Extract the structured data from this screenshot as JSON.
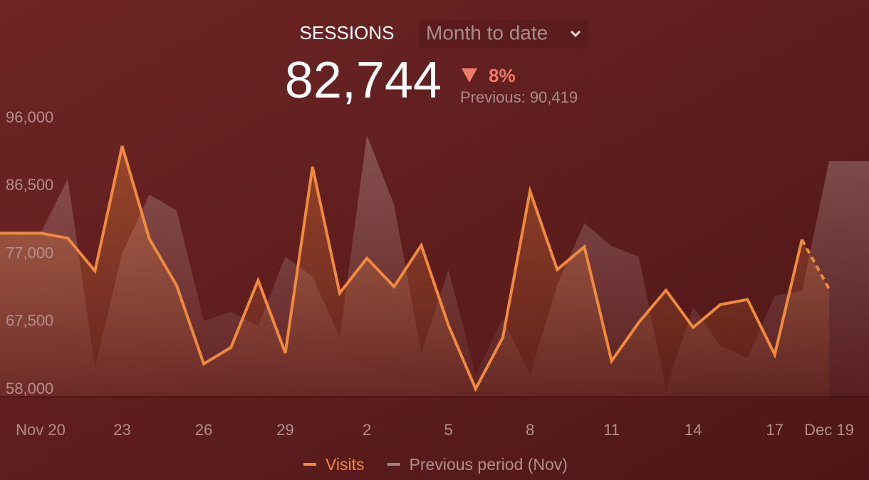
{
  "chart_data": {
    "type": "line",
    "title": "SESSIONS",
    "dropdown": "Month to date",
    "value": "82,744",
    "change": "8%",
    "previous": "Previous: 90,419",
    "categories": [
      "Nov 20",
      null,
      null,
      "23",
      null,
      null,
      "26",
      null,
      null,
      "29",
      null,
      null,
      "2",
      null,
      null,
      "5",
      null,
      null,
      "8",
      null,
      null,
      "11",
      null,
      null,
      "14",
      null,
      null,
      "17",
      null,
      "Dec 19"
    ],
    "series": [
      {
        "name": "Previous period (Nov)",
        "color": "#a08282",
        "values": [
          79900,
          87500,
          61100,
          77100,
          85300,
          83100,
          67600,
          68900,
          66900,
          76600,
          73800,
          65300,
          93600,
          83900,
          63100,
          74800,
          60100,
          67900,
          60100,
          72600,
          81300,
          78100,
          76600,
          58000,
          69600,
          64100,
          62400,
          71100,
          71800,
          90000
        ]
      },
      {
        "name": "Visits",
        "color": "#f08a3c",
        "values": [
          79900,
          79200,
          74600,
          92100,
          79100,
          72600,
          61600,
          63900,
          73300,
          63100,
          89200,
          71500,
          76400,
          72400,
          78200,
          67000,
          58100,
          65300,
          85800,
          74800,
          78000,
          62000,
          67400,
          71900,
          66700,
          69900,
          70600,
          62900,
          79000,
          72100
        ]
      }
    ],
    "ylim": [
      57000,
      96000
    ],
    "yticks": [
      {
        "value": 96000,
        "label": "96,000"
      },
      {
        "value": 86500,
        "label": "86,500"
      },
      {
        "value": 77000,
        "label": "77,000"
      },
      {
        "value": 67500,
        "label": "67,500"
      },
      {
        "value": 58000,
        "label": "58,000"
      }
    ]
  }
}
